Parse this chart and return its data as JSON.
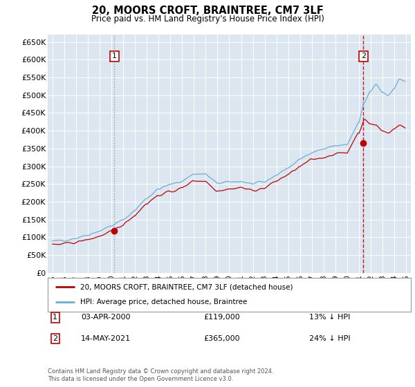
{
  "title": "20, MOORS CROFT, BRAINTREE, CM7 3LF",
  "subtitle": "Price paid vs. HM Land Registry's House Price Index (HPI)",
  "legend_line1": "20, MOORS CROFT, BRAINTREE, CM7 3LF (detached house)",
  "legend_line2": "HPI: Average price, detached house, Braintree",
  "footer1": "Contains HM Land Registry data © Crown copyright and database right 2024.",
  "footer2": "This data is licensed under the Open Government Licence v3.0.",
  "marker1_date": "03-APR-2000",
  "marker1_price": "£119,000",
  "marker1_hpi": "13% ↓ HPI",
  "marker2_date": "14-MAY-2021",
  "marker2_price": "£365,000",
  "marker2_hpi": "24% ↓ HPI",
  "hpi_color": "#6baed6",
  "price_color": "#c00000",
  "marker1_vline_color": "#aaaaaa",
  "marker2_vline_color": "#c00000",
  "plot_bg_color": "#dce6f1",
  "ylim": [
    0,
    670000
  ],
  "yticks": [
    0,
    50000,
    100000,
    150000,
    200000,
    250000,
    300000,
    350000,
    400000,
    450000,
    500000,
    550000,
    600000,
    650000
  ],
  "marker1_x": 2000.25,
  "marker1_y": 119000,
  "marker2_x": 2021.37,
  "marker2_y": 365000,
  "xlim_left": 1994.6,
  "xlim_right": 2025.4
}
